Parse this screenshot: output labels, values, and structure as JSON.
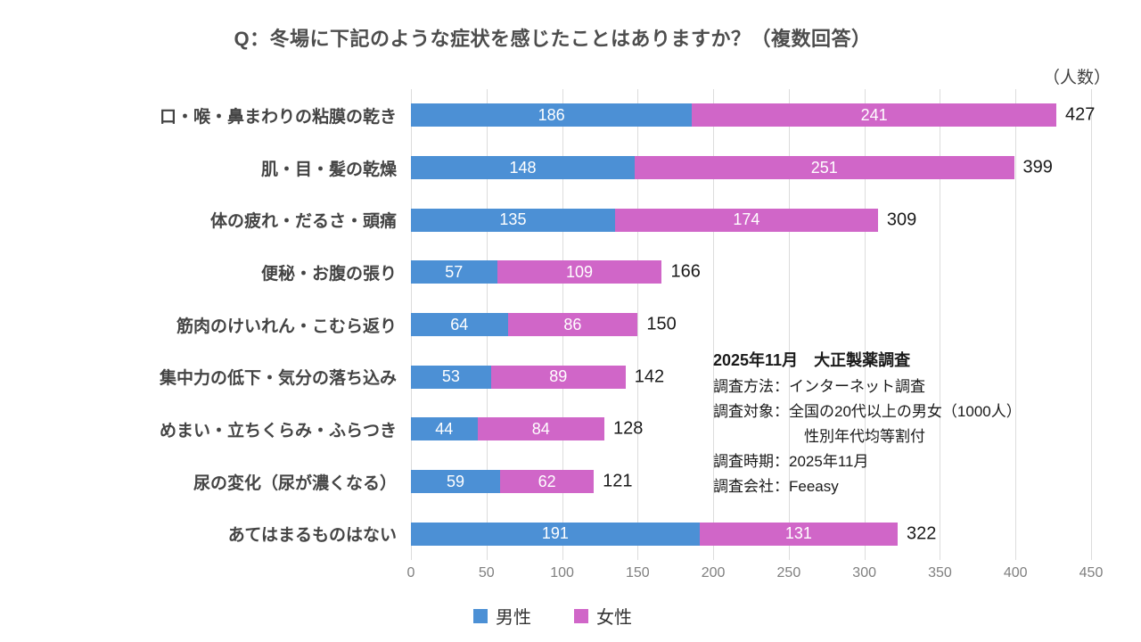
{
  "title": "Q：冬場に下記のような症状を感じたことはありますか？（複数回答）",
  "unit_label": "（人数）",
  "annotation": {
    "heading": "2025年11月　大正製薬調査",
    "lines": [
      {
        "text": "調査方法：インターネット調査",
        "indent": false
      },
      {
        "text": "調査対象：全国の20代以上の男女（1000人）",
        "indent": false
      },
      {
        "text": "性別年代均等割付",
        "indent": true
      },
      {
        "text": "調査時期：2025年11月",
        "indent": false
      },
      {
        "text": "調査会社：Feeasy",
        "indent": false
      }
    ]
  },
  "chart_data": {
    "type": "bar",
    "orientation": "horizontal",
    "stacked": true,
    "title": "Q：冬場に下記のような症状を感じたことはありますか？（複数回答）",
    "unit": "人数",
    "categories": [
      "口・喉・鼻まわりの粘膜の乾き",
      "肌・目・髪の乾燥",
      "体の疲れ・だるさ・頭痛",
      "便秘・お腹の張り",
      "筋肉のけいれん・こむら返り",
      "集中力の低下・気分の落ち込み",
      "めまい・立ちくらみ・ふらつき",
      "尿の変化（尿が濃くなる）",
      "あてはまるものはない"
    ],
    "series": [
      {
        "name": "男性",
        "color": "#4C90D5",
        "values": [
          186,
          148,
          135,
          57,
          64,
          53,
          44,
          59,
          191
        ]
      },
      {
        "name": "女性",
        "color": "#D066C8",
        "values": [
          241,
          251,
          174,
          109,
          86,
          89,
          84,
          62,
          131
        ]
      }
    ],
    "totals": [
      427,
      399,
      309,
      166,
      150,
      142,
      128,
      121,
      322
    ],
    "xlim": [
      0,
      450
    ],
    "x_ticks": [
      0,
      50,
      100,
      150,
      200,
      250,
      300,
      350,
      400,
      450
    ],
    "grid": true,
    "gridline_color": "#DCDCDC",
    "legend_position": "bottom"
  }
}
